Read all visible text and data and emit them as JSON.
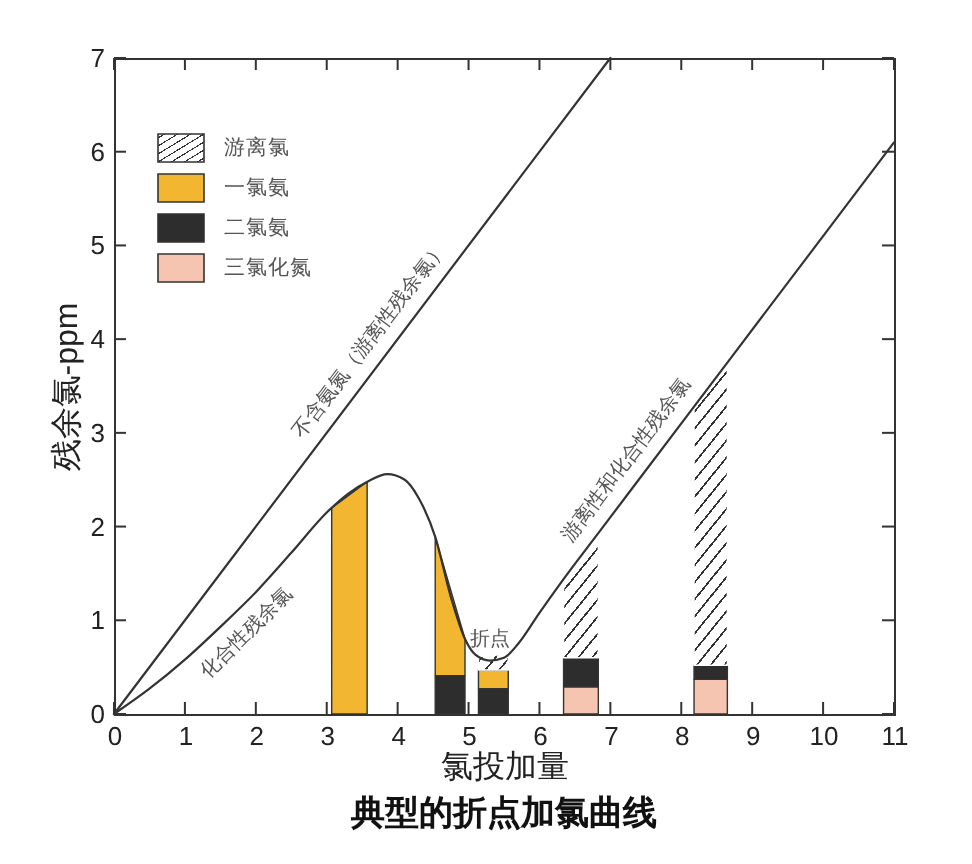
{
  "chart_data": {
    "type": "area",
    "title": "典型的折点加氯曲线",
    "xlabel": "氯投加量",
    "ylabel": "残余氯-ppm",
    "x": [
      3.07,
      3.57,
      4.0,
      4.53,
      4.95,
      5.05,
      5.14,
      5.56,
      6.0,
      6.34,
      6.83,
      7.5,
      8.18,
      8.65
    ],
    "stacked": true,
    "series": [
      {
        "name": "三氯化氮",
        "color": "#f6c5b1",
        "values": [
          null,
          null,
          null,
          null,
          null,
          null,
          null,
          null,
          null,
          0.29,
          0.29,
          null,
          0.37,
          0.37
        ]
      },
      {
        "name": "二氯氨",
        "color": "#2d2d2d",
        "values": [
          null,
          null,
          null,
          0.41,
          0.41,
          null,
          0.27,
          0.27,
          null,
          0.31,
          0.31,
          null,
          0.15,
          0.15
        ]
      },
      {
        "name": "一氯氨",
        "color": "#f2b630",
        "values": [
          2.2,
          2.48,
          null,
          1.48,
          0.39,
          null,
          0.2,
          0.2,
          null,
          null,
          null,
          null,
          null,
          null
        ]
      },
      {
        "name": "游离氯",
        "color": "#ffffff",
        "values": [
          null,
          null,
          null,
          null,
          null,
          null,
          0.14,
          0.17,
          null,
          0.84,
          1.33,
          null,
          2.76,
          3.23
        ]
      },
      {
        "type": "line",
        "color": "#333333",
        "x": [
          0,
          7
        ],
        "values": [
          0,
          7
        ]
      },
      {
        "type": "line",
        "color": "#333333",
        "x": [
          0,
          0.5,
          1,
          1.5,
          2,
          2.5,
          3,
          3.3,
          3.6,
          3.85,
          4.1,
          4.3,
          4.53,
          4.75,
          4.95,
          5.1,
          5.3,
          5.5,
          5.7,
          6.0,
          6.34,
          6.83,
          8.18,
          8.65,
          11
        ],
        "values": [
          0,
          0.27,
          0.58,
          0.93,
          1.3,
          1.72,
          2.15,
          2.35,
          2.49,
          2.56,
          2.5,
          2.3,
          1.89,
          1.25,
          0.8,
          0.63,
          0.57,
          0.6,
          0.75,
          1.08,
          1.44,
          1.93,
          3.28,
          3.75,
          6.1
        ]
      }
    ],
    "xlim": [
      0,
      11
    ],
    "ylim": [
      0,
      7
    ],
    "xticks": [
      0,
      1,
      2,
      3,
      4,
      5,
      6,
      7,
      8,
      9,
      10,
      11
    ],
    "yticks": [
      0,
      1,
      2,
      3,
      4,
      5,
      6,
      7
    ],
    "legend": "top left",
    "annotations": [
      {
        "text": "不含氨氮（游离性残余氯）",
        "x": 3.85,
        "y": 3.85
      },
      {
        "text": "化合性残余氯",
        "x": 1.65,
        "y": 1.04
      },
      {
        "text": "游离性和化合性残余氯",
        "x": 7.47,
        "y": 2.57
      },
      {
        "text": "折点",
        "x": 5.3,
        "y": 0.57
      }
    ]
  }
}
